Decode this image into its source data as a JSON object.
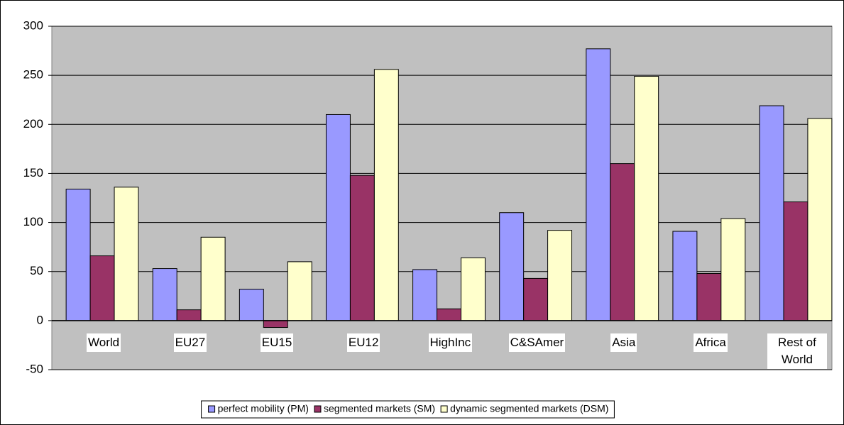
{
  "chart_data": {
    "type": "bar",
    "categories": [
      "World",
      "EU27",
      "EU15",
      "EU12",
      "HighInc",
      "C&SAmer",
      "Asia",
      "Africa",
      "Rest of World"
    ],
    "series": [
      {
        "name": "perfect mobility (PM)",
        "color": "#9999ff",
        "values": [
          134,
          53,
          32,
          210,
          52,
          110,
          277,
          91,
          219
        ]
      },
      {
        "name": "segmented markets (SM)",
        "color": "#993366",
        "values": [
          66,
          11,
          -7,
          148,
          12,
          43,
          160,
          48,
          121
        ]
      },
      {
        "name": "dynamic segmented markets (DSM)",
        "color": "#ffffcc",
        "values": [
          136,
          85,
          60,
          256,
          64,
          92,
          249,
          104,
          206
        ]
      }
    ],
    "ylim": [
      -50,
      300
    ],
    "yticks": [
      -50,
      0,
      50,
      100,
      150,
      200,
      250,
      300
    ],
    "grid": true,
    "legend": "bottom"
  }
}
